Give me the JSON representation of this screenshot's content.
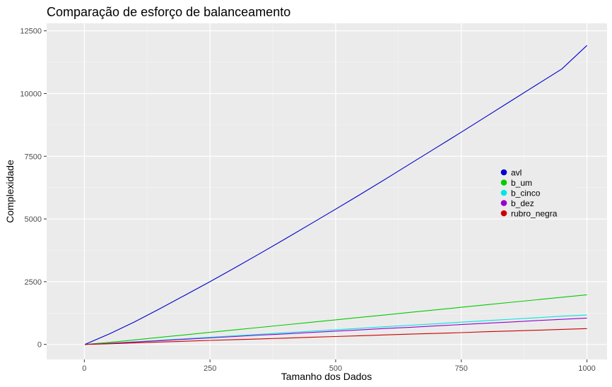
{
  "chart_data": {
    "type": "line",
    "title": "Comparação de esforço de balanceamento",
    "xlabel": "Tamanho dos Dados",
    "ylabel": "Complexidade",
    "xlim": [
      -75,
      1040
    ],
    "ylim": [
      -600,
      12800
    ],
    "x_ticks": [
      0,
      250,
      500,
      750,
      1000
    ],
    "x_tick_labels": [
      "0",
      "250",
      "500",
      "750",
      "1000"
    ],
    "y_ticks": [
      0,
      2500,
      5000,
      7500,
      10000,
      12500
    ],
    "y_tick_labels": [
      "0",
      "2500",
      "5000",
      "7500",
      "10000",
      "12500"
    ],
    "grid": true,
    "legend_position": "right",
    "x": [
      1,
      50,
      100,
      150,
      200,
      250,
      300,
      350,
      400,
      450,
      500,
      550,
      600,
      650,
      700,
      750,
      800,
      850,
      900,
      950,
      1000
    ],
    "series": [
      {
        "name": "avl",
        "color": "#0000cc",
        "values": [
          0,
          420,
          900,
          1420,
          1960,
          2500,
          3060,
          3630,
          4210,
          4800,
          5390,
          5990,
          6600,
          7220,
          7840,
          8460,
          9090,
          9720,
          10350,
          10980,
          11920
        ]
      },
      {
        "name": "b_um",
        "color": "#00cc00",
        "values": [
          0,
          80,
          180,
          280,
          380,
          480,
          580,
          680,
          780,
          880,
          980,
          1080,
          1180,
          1280,
          1380,
          1480,
          1580,
          1680,
          1780,
          1880,
          1980
        ]
      },
      {
        "name": "b_cinco",
        "color": "#00e5e5",
        "values": [
          0,
          45,
          105,
          165,
          225,
          285,
          345,
          405,
          465,
          525,
          585,
          645,
          705,
          765,
          825,
          885,
          945,
          1005,
          1065,
          1125,
          1170
        ]
      },
      {
        "name": "b_dez",
        "color": "#9900cc",
        "values": [
          0,
          40,
          95,
          150,
          205,
          260,
          315,
          370,
          420,
          475,
          530,
          580,
          635,
          685,
          740,
          790,
          845,
          895,
          950,
          1000,
          1050
        ]
      },
      {
        "name": "rubro_negra",
        "color": "#cc0000",
        "values": [
          0,
          25,
          60,
          95,
          125,
          160,
          190,
          220,
          250,
          285,
          315,
          345,
          380,
          410,
          440,
          470,
          505,
          535,
          565,
          600,
          630
        ]
      }
    ]
  }
}
